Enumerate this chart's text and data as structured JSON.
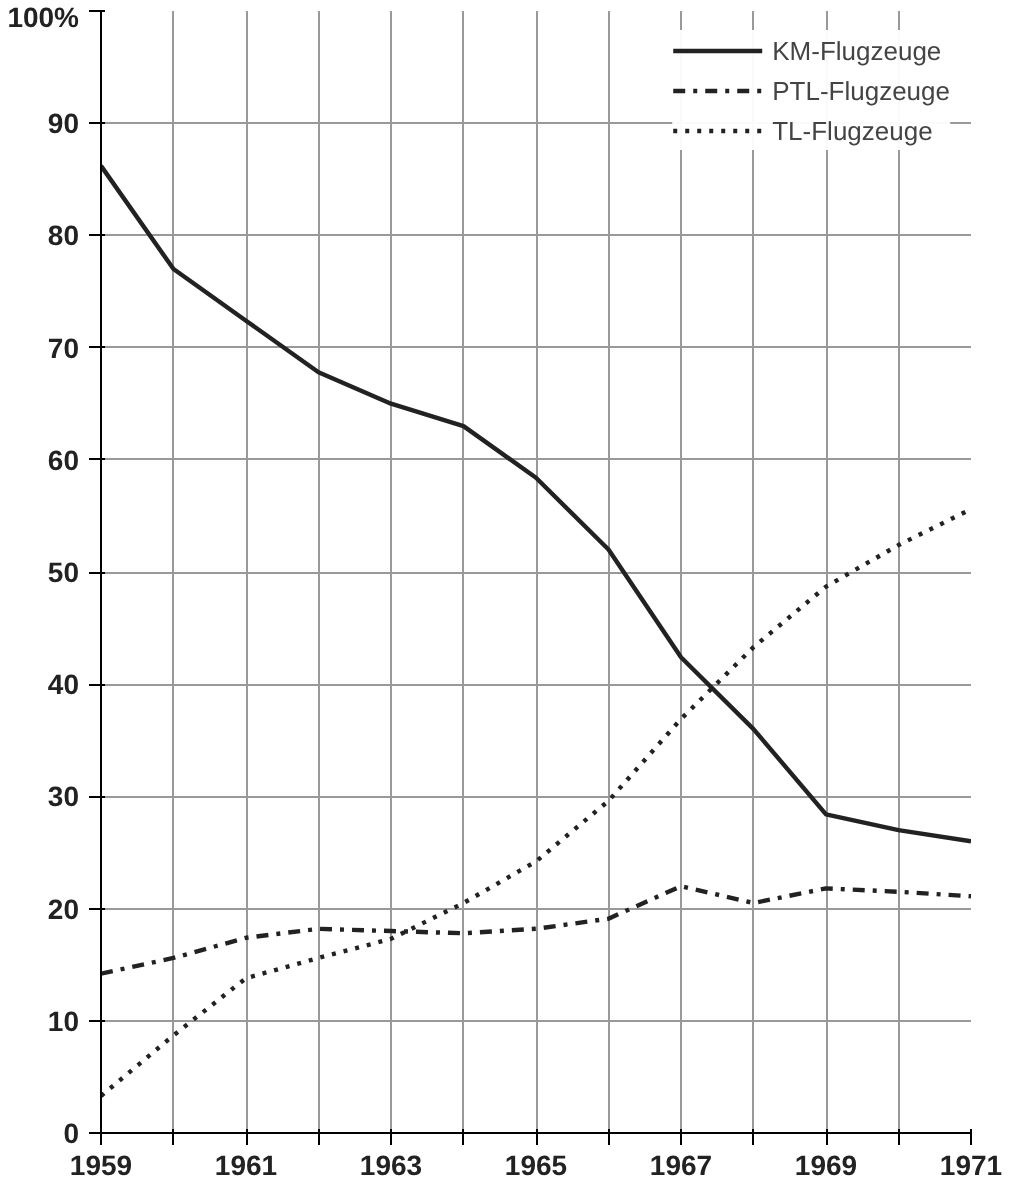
{
  "chart_data": {
    "type": "line",
    "x": [
      1959,
      1960,
      1961,
      1962,
      1963,
      1964,
      1965,
      1966,
      1967,
      1968,
      1969,
      1970,
      1971
    ],
    "series": [
      {
        "name": "KM-Flugzeuge",
        "color": "#222222",
        "line_style": "solid",
        "values": [
          86.2,
          77,
          72.4,
          67.8,
          65,
          63,
          58.4,
          52,
          42.4,
          36,
          28.4,
          27,
          26
        ]
      },
      {
        "name": "PTL-Flugzeuge",
        "color": "#222222",
        "line_style": "dashdot",
        "values": [
          14.2,
          15.6,
          17.4,
          18.2,
          18,
          17.8,
          18.2,
          19.1,
          22,
          20.5,
          21.8,
          21.5,
          21.1
        ]
      },
      {
        "name": "TL-Flugzeuge",
        "color": "#222222",
        "line_style": "dotted",
        "values": [
          3.3,
          8.7,
          13.8,
          15.6,
          17.3,
          20.5,
          24.2,
          29.6,
          36.9,
          43.3,
          48.7,
          52.4,
          55.6
        ]
      }
    ],
    "xlim": [
      1959,
      1971
    ],
    "xticks": [
      1959,
      {
        "value": 1960,
        "label": null
      },
      1961,
      {
        "value": 1962,
        "label": null
      },
      1963,
      {
        "value": 1964,
        "label": null
      },
      1965,
      {
        "value": 1966,
        "label": null
      },
      1967,
      {
        "value": 1968,
        "label": null
      },
      1969,
      {
        "value": 1970,
        "label": null
      },
      1971
    ],
    "ylim": [
      0,
      100
    ],
    "yticks": [
      0,
      10,
      20,
      30,
      40,
      50,
      60,
      70,
      80,
      90,
      {
        "value": 100,
        "label": "100%"
      }
    ],
    "grid": true,
    "legend": "top right",
    "marker": "none"
  }
}
